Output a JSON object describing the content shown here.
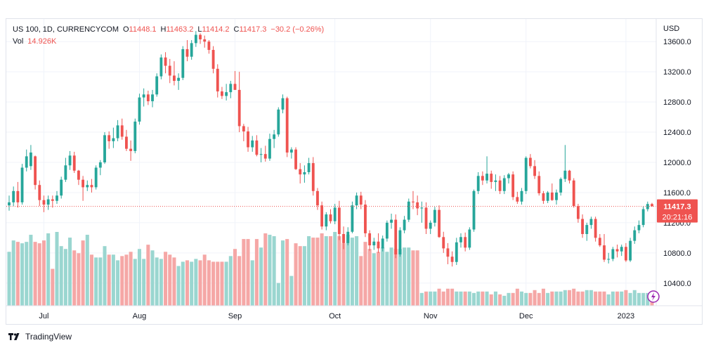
{
  "legend": {
    "symbol": "US 100, 1D, CURRENCYCOM",
    "o_label": "O",
    "o": "11448.1",
    "h_label": "H",
    "h": "11463.2",
    "l_label": "L",
    "l": "11414.2",
    "c_label": "C",
    "c": "11417.3",
    "change": "−30.2 (−0.26%)",
    "vol_label": "Vol",
    "vol": "14.926K"
  },
  "price_badge": {
    "price": "11417.3",
    "countdown": "20:21:16"
  },
  "footer": {
    "brand": "TradingView"
  },
  "colors": {
    "up": "#26a69a",
    "down": "#ef5350",
    "up_vol": "#9ad6d0",
    "down_vol": "#f5a7a6",
    "grid": "#f0f3fa"
  },
  "chart_data": {
    "type": "candlestick",
    "currency": "USD",
    "ylim": [
      10100,
      13900
    ],
    "yticks": [
      10400,
      10800,
      11200,
      11600,
      12000,
      12400,
      12800,
      13200,
      13600
    ],
    "ytick_labels": [
      "10400.0",
      "10800.0",
      "11200.0",
      "11600.0",
      "12000.0",
      "12400.0",
      "12800.0",
      "13200.0",
      "13600.0"
    ],
    "x_labels": [
      {
        "label": "Jul",
        "index": 8
      },
      {
        "label": "Aug",
        "index": 30
      },
      {
        "label": "Sep",
        "index": 52
      },
      {
        "label": "Oct",
        "index": 75
      },
      {
        "label": "Nov",
        "index": 97
      },
      {
        "label": "Dec",
        "index": 119
      },
      {
        "label": "2023",
        "index": 142
      }
    ],
    "last_price": 11417.3,
    "candles": [
      [
        11430,
        11560,
        11360,
        11470,
        3.8
      ],
      [
        11470,
        11680,
        11420,
        11620,
        4.6
      ],
      [
        11620,
        11740,
        11400,
        11470,
        4.5
      ],
      [
        11470,
        11980,
        11440,
        11930,
        4.4
      ],
      [
        11930,
        12170,
        11880,
        12080,
        4.5
      ],
      [
        11950,
        12230,
        11900,
        12130,
        5.0
      ],
      [
        12080,
        12090,
        11640,
        11700,
        4.5
      ],
      [
        11700,
        11760,
        11420,
        11500,
        4.4
      ],
      [
        11500,
        11560,
        11340,
        11440,
        4.6
      ],
      [
        11440,
        11560,
        11370,
        11510,
        5.1
      ],
      [
        11510,
        11560,
        11400,
        11490,
        2.6
      ],
      [
        11490,
        11620,
        11450,
        11560,
        5.2
      ],
      [
        11560,
        11810,
        11520,
        11770,
        4.2
      ],
      [
        11770,
        12060,
        11740,
        11960,
        4.0
      ],
      [
        11960,
        12150,
        11900,
        12090,
        4.8
      ],
      [
        12090,
        12140,
        11860,
        11890,
        3.9
      ],
      [
        11890,
        11900,
        11700,
        11770,
        3.7
      ],
      [
        11770,
        11820,
        11490,
        11670,
        4.6
      ],
      [
        11670,
        11760,
        11620,
        11700,
        5.0
      ],
      [
        11700,
        11780,
        11600,
        11670,
        3.6
      ],
      [
        11670,
        11960,
        11640,
        11930,
        3.4
      ],
      [
        11930,
        12030,
        11830,
        12000,
        3.4
      ],
      [
        12000,
        12400,
        11980,
        12360,
        4.2
      ],
      [
        12360,
        12410,
        12180,
        12280,
        3.6
      ],
      [
        12280,
        12460,
        12190,
        12320,
        3.6
      ],
      [
        12320,
        12560,
        12280,
        12490,
        3.2
      ],
      [
        12490,
        12580,
        12300,
        12340,
        3.5
      ],
      [
        12340,
        12430,
        12150,
        12180,
        3.6
      ],
      [
        12180,
        12290,
        12020,
        12150,
        3.8
      ],
      [
        12150,
        12580,
        12120,
        12540,
        3.3
      ],
      [
        12540,
        12910,
        12500,
        12860,
        4.0
      ],
      [
        12860,
        12980,
        12740,
        12900,
        3.3
      ],
      [
        12900,
        12950,
        12760,
        12810,
        4.3
      ],
      [
        12810,
        12960,
        12730,
        12900,
        3.9
      ],
      [
        12900,
        13180,
        12870,
        13140,
        3.4
      ],
      [
        13140,
        13430,
        13100,
        13390,
        3.3
      ],
      [
        13390,
        13460,
        13180,
        13280,
        3.8
      ],
      [
        13280,
        13370,
        13050,
        13150,
        3.6
      ],
      [
        13150,
        13340,
        13020,
        13080,
        3.4
      ],
      [
        13080,
        13180,
        12960,
        13120,
        2.8
      ],
      [
        13120,
        13540,
        13090,
        13500,
        3.1
      ],
      [
        13500,
        13620,
        13340,
        13400,
        3.2
      ],
      [
        13400,
        13620,
        13360,
        13580,
        3.1
      ],
      [
        13580,
        13740,
        13530,
        13690,
        3.3
      ],
      [
        13690,
        13710,
        13570,
        13630,
        3.2
      ],
      [
        13630,
        13680,
        13520,
        13600,
        3.6
      ],
      [
        13600,
        13620,
        13440,
        13490,
        3.2
      ],
      [
        13490,
        13540,
        13180,
        13240,
        3.1
      ],
      [
        13240,
        13300,
        12860,
        12940,
        3.1
      ],
      [
        12940,
        13000,
        12840,
        12880,
        3.1
      ],
      [
        12880,
        13040,
        12820,
        12930,
        3.1
      ],
      [
        12930,
        13080,
        12850,
        13040,
        3.5
      ],
      [
        13040,
        13210,
        12960,
        12960,
        4.0
      ],
      [
        12960,
        13200,
        12400,
        12480,
        3.5
      ],
      [
        12480,
        12510,
        12280,
        12410,
        4.7
      ],
      [
        12410,
        12470,
        12140,
        12200,
        4.7
      ],
      [
        12200,
        12350,
        12140,
        12290,
        3.2
      ],
      [
        12290,
        12360,
        12080,
        12100,
        4.7
      ],
      [
        12100,
        12190,
        12000,
        12110,
        4.1
      ],
      [
        12110,
        12220,
        12010,
        12050,
        5.1
      ],
      [
        12050,
        12380,
        12020,
        12310,
        5.0
      ],
      [
        12310,
        12430,
        12190,
        12370,
        4.9
      ],
      [
        12370,
        12730,
        12340,
        12700,
        1.6
      ],
      [
        12700,
        12900,
        12650,
        12850,
        4.6
      ],
      [
        12850,
        12870,
        12070,
        12130,
        4.7
      ],
      [
        12130,
        12200,
        12050,
        12170,
        2.1
      ],
      [
        12170,
        12200,
        11900,
        11910,
        4.4
      ],
      [
        11910,
        11990,
        11720,
        11840,
        4.2
      ],
      [
        11840,
        11960,
        11730,
        11870,
        4.2
      ],
      [
        11870,
        12060,
        11840,
        11990,
        4.9
      ],
      [
        11990,
        12070,
        11560,
        11620,
        4.8
      ],
      [
        11620,
        11660,
        11370,
        11430,
        4.8
      ],
      [
        11430,
        11480,
        11110,
        11150,
        5.1
      ],
      [
        11150,
        11340,
        11100,
        11310,
        4.9
      ],
      [
        11310,
        11380,
        11190,
        11220,
        4.9
      ],
      [
        11220,
        11450,
        11180,
        11400,
        5.2
      ],
      [
        11400,
        11490,
        10970,
        11050,
        4.9
      ],
      [
        11050,
        11150,
        10850,
        10930,
        4.4
      ],
      [
        10930,
        11140,
        10900,
        11080,
        5.0
      ],
      [
        11080,
        11480,
        11060,
        11430,
        4.8
      ],
      [
        11430,
        11600,
        11380,
        11560,
        4.9
      ],
      [
        11560,
        11610,
        11380,
        11440,
        3.5
      ],
      [
        11440,
        11500,
        11010,
        11060,
        4.5
      ],
      [
        11060,
        11100,
        10830,
        10900,
        4.0
      ],
      [
        10900,
        11000,
        10840,
        10950,
        3.7
      ],
      [
        10950,
        11060,
        10800,
        10860,
        3.8
      ],
      [
        10860,
        11030,
        10820,
        10990,
        4.1
      ],
      [
        10990,
        11230,
        10950,
        11200,
        3.8
      ],
      [
        11200,
        11320,
        11120,
        11240,
        4.1
      ],
      [
        11240,
        11310,
        10730,
        10780,
        4.0
      ],
      [
        10780,
        11140,
        10750,
        11100,
        4.0
      ],
      [
        11100,
        11290,
        11060,
        11240,
        4.1
      ],
      [
        11240,
        11520,
        11210,
        11480,
        4.1
      ],
      [
        11480,
        11620,
        11380,
        11470,
        3.9
      ],
      [
        11470,
        11560,
        11300,
        11390,
        3.9
      ],
      [
        11390,
        11480,
        11200,
        11400,
        0.9
      ],
      [
        11400,
        11470,
        11050,
        11120,
        1.0
      ],
      [
        11120,
        11230,
        11050,
        11200,
        1.0
      ],
      [
        11200,
        11410,
        11150,
        11370,
        1.0
      ],
      [
        11370,
        11430,
        11000,
        11010,
        1.2
      ],
      [
        11010,
        11080,
        10800,
        10860,
        1.0
      ],
      [
        10860,
        10930,
        10650,
        10750,
        1.2
      ],
      [
        10750,
        10820,
        10620,
        10680,
        1.2
      ],
      [
        10680,
        11000,
        10640,
        10940,
        1.0
      ],
      [
        10940,
        11060,
        10870,
        11010,
        1.0
      ],
      [
        11010,
        11070,
        10820,
        10870,
        1.0
      ],
      [
        10870,
        11140,
        10840,
        11110,
        1.0
      ],
      [
        11110,
        11640,
        11080,
        11620,
        0.9
      ],
      [
        11620,
        11870,
        11580,
        11820,
        1.0
      ],
      [
        11820,
        11880,
        11700,
        11760,
        1.0
      ],
      [
        11760,
        12080,
        11720,
        11850,
        1.0
      ],
      [
        11850,
        11890,
        11650,
        11740,
        0.8
      ],
      [
        11740,
        11840,
        11620,
        11760,
        1.0
      ],
      [
        11760,
        11820,
        11580,
        11620,
        0.8
      ],
      [
        11620,
        11830,
        11580,
        11790,
        0.7
      ],
      [
        11790,
        11860,
        11720,
        11840,
        0.9
      ],
      [
        11840,
        11880,
        11500,
        11540,
        0.9
      ],
      [
        11540,
        11610,
        11450,
        11480,
        1.2
      ],
      [
        11480,
        11660,
        11440,
        11620,
        1.0
      ],
      [
        11620,
        12080,
        11580,
        12060,
        0.9
      ],
      [
        12060,
        12110,
        11920,
        11950,
        0.9
      ],
      [
        11950,
        12030,
        11780,
        11820,
        1.1
      ],
      [
        11820,
        11880,
        11560,
        11590,
        0.9
      ],
      [
        11590,
        11620,
        11450,
        11490,
        1.2
      ],
      [
        11490,
        11620,
        11460,
        11600,
        0.9
      ],
      [
        11600,
        11720,
        11490,
        11500,
        1.0
      ],
      [
        11500,
        11640,
        11440,
        11600,
        1.0
      ],
      [
        11600,
        11800,
        11560,
        11780,
        1.0
      ],
      [
        11780,
        12230,
        11740,
        11890,
        1.1
      ],
      [
        11890,
        11900,
        11720,
        11760,
        1.1
      ],
      [
        11760,
        11790,
        11400,
        11420,
        1.2
      ],
      [
        11420,
        11450,
        11200,
        11250,
        1.0
      ],
      [
        11250,
        11310,
        11000,
        11050,
        1.0
      ],
      [
        11050,
        11200,
        10960,
        11170,
        1.1
      ],
      [
        11170,
        11280,
        11120,
        11250,
        1.1
      ],
      [
        11250,
        11280,
        10950,
        11000,
        1.0
      ],
      [
        11000,
        11050,
        10880,
        10900,
        1.0
      ],
      [
        10900,
        11050,
        10680,
        10710,
        1.0
      ],
      [
        10710,
        10800,
        10660,
        10720,
        0.8
      ],
      [
        10720,
        10880,
        10690,
        10850,
        1.0
      ],
      [
        10850,
        10910,
        10740,
        10820,
        1.0
      ],
      [
        10820,
        10910,
        10760,
        10880,
        1.0
      ],
      [
        10880,
        10930,
        10680,
        10700,
        1.1
      ],
      [
        10700,
        11000,
        10680,
        10960,
        0.9
      ],
      [
        10960,
        11150,
        10920,
        11100,
        1.1
      ],
      [
        11100,
        11230,
        11060,
        11170,
        0.9
      ],
      [
        11170,
        11420,
        11140,
        11380,
        0.9
      ],
      [
        11380,
        11480,
        11350,
        11448,
        0.9
      ],
      [
        11448,
        11463,
        11414,
        11417,
        0.9
      ]
    ]
  }
}
